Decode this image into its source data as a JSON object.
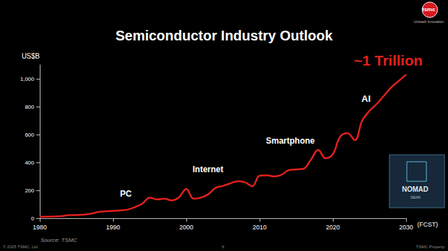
{
  "chart_data": {
    "type": "line",
    "title": "Semiconductor Industry Outlook",
    "x": [
      1980,
      1981,
      1982,
      1983,
      1984,
      1985,
      1986,
      1987,
      1988,
      1989,
      1990,
      1991,
      1992,
      1993,
      1994,
      1995,
      1996,
      1997,
      1998,
      1999,
      2000,
      2001,
      2002,
      2003,
      2004,
      2005,
      2006,
      2007,
      2008,
      2009,
      2010,
      2011,
      2012,
      2013,
      2014,
      2015,
      2016,
      2017,
      2018,
      2019,
      2020,
      2021,
      2022,
      2023,
      2024,
      2025,
      2026,
      2027,
      2028,
      2029,
      2030
    ],
    "values": [
      10,
      11,
      12,
      15,
      22,
      22,
      26,
      32,
      45,
      50,
      52,
      56,
      62,
      80,
      105,
      148,
      135,
      140,
      128,
      150,
      210,
      140,
      148,
      172,
      218,
      232,
      250,
      265,
      258,
      230,
      305,
      308,
      300,
      312,
      345,
      350,
      355,
      420,
      490,
      430,
      460,
      585,
      610,
      560,
      700,
      770,
      820,
      880,
      940,
      985,
      1030
    ],
    "color": "#e3201b",
    "x_label": "(FCST)",
    "y_label": "US$B",
    "xlim": [
      1980,
      2030
    ],
    "xticks": [
      1980,
      1990,
      2000,
      2010,
      2020,
      2030
    ],
    "ylim": [
      0,
      1100
    ],
    "yticks": [
      0,
      200,
      400,
      600,
      800,
      {
        "value": 1000,
        "label": "1,000"
      }
    ],
    "grid": false,
    "annotations": [
      "PC",
      "Internet",
      "Smartphone",
      "AI",
      "~1 Trillion"
    ],
    "source": "Source: TSMC"
  },
  "slide": {
    "logo": "tsmc",
    "tagline": "Unleash Innovation",
    "copyright": "© 2025 TSMC, Ltd.",
    "page": "6",
    "footer_right": "TSMC Property",
    "badge": [
      "NOMAD",
      "SEMI"
    ]
  }
}
